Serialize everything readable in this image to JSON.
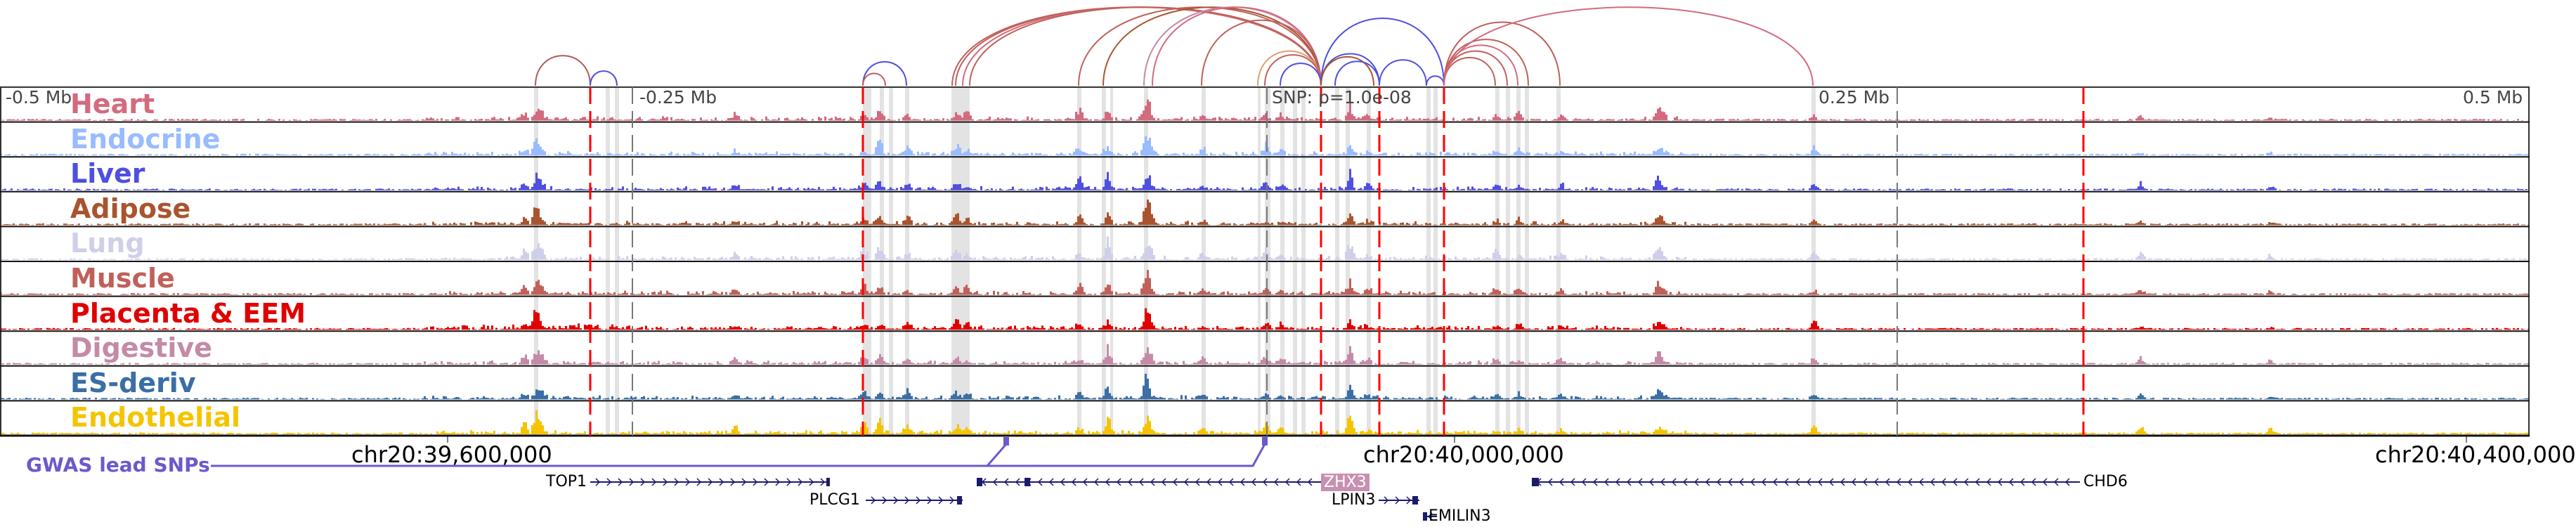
{
  "tracks": [
    {
      "label": "Heart",
      "color": "#d46a7e"
    },
    {
      "label": "Endocrine",
      "color": "#99bbff"
    },
    {
      "label": "Liver",
      "color": "#4f4fe0"
    },
    {
      "label": "Adipose",
      "color": "#a9542f"
    },
    {
      "label": "Lung",
      "color": "#cfcfea"
    },
    {
      "label": "Muscle",
      "color": "#c0605a"
    },
    {
      "label": "Placenta & EEM",
      "color": "#e00000"
    },
    {
      "label": "Digestive",
      "color": "#c48aa8"
    },
    {
      "label": "ES-deriv",
      "color": "#3a6ea5"
    },
    {
      "label": "Endothelial",
      "color": "#f5c400"
    }
  ],
  "axis": {
    "left": "-0.5 Mb",
    "mid_left": "-0.25 Mb",
    "snp": "SNP: p=1.0e-08",
    "mid_right": "0.25 Mb",
    "right": "0.5 Mb"
  },
  "coords": [
    "chr20:39,600,000",
    "chr20:40,000,000",
    "chr20:40,400,000"
  ],
  "gwas_label": "GWAS lead SNPs",
  "genes": {
    "top1": "TOP1",
    "plcg1": "PLCG1",
    "zhx3": "ZHX3",
    "lpin3": "LPIN3",
    "emilin3": "EMILIN3",
    "chd6": "CHD6"
  },
  "colors": {
    "red_marker": "#ff0000",
    "shade": "#e3e3e3",
    "gene": "#1a1a6e",
    "gwas": "#6a5acd"
  }
}
